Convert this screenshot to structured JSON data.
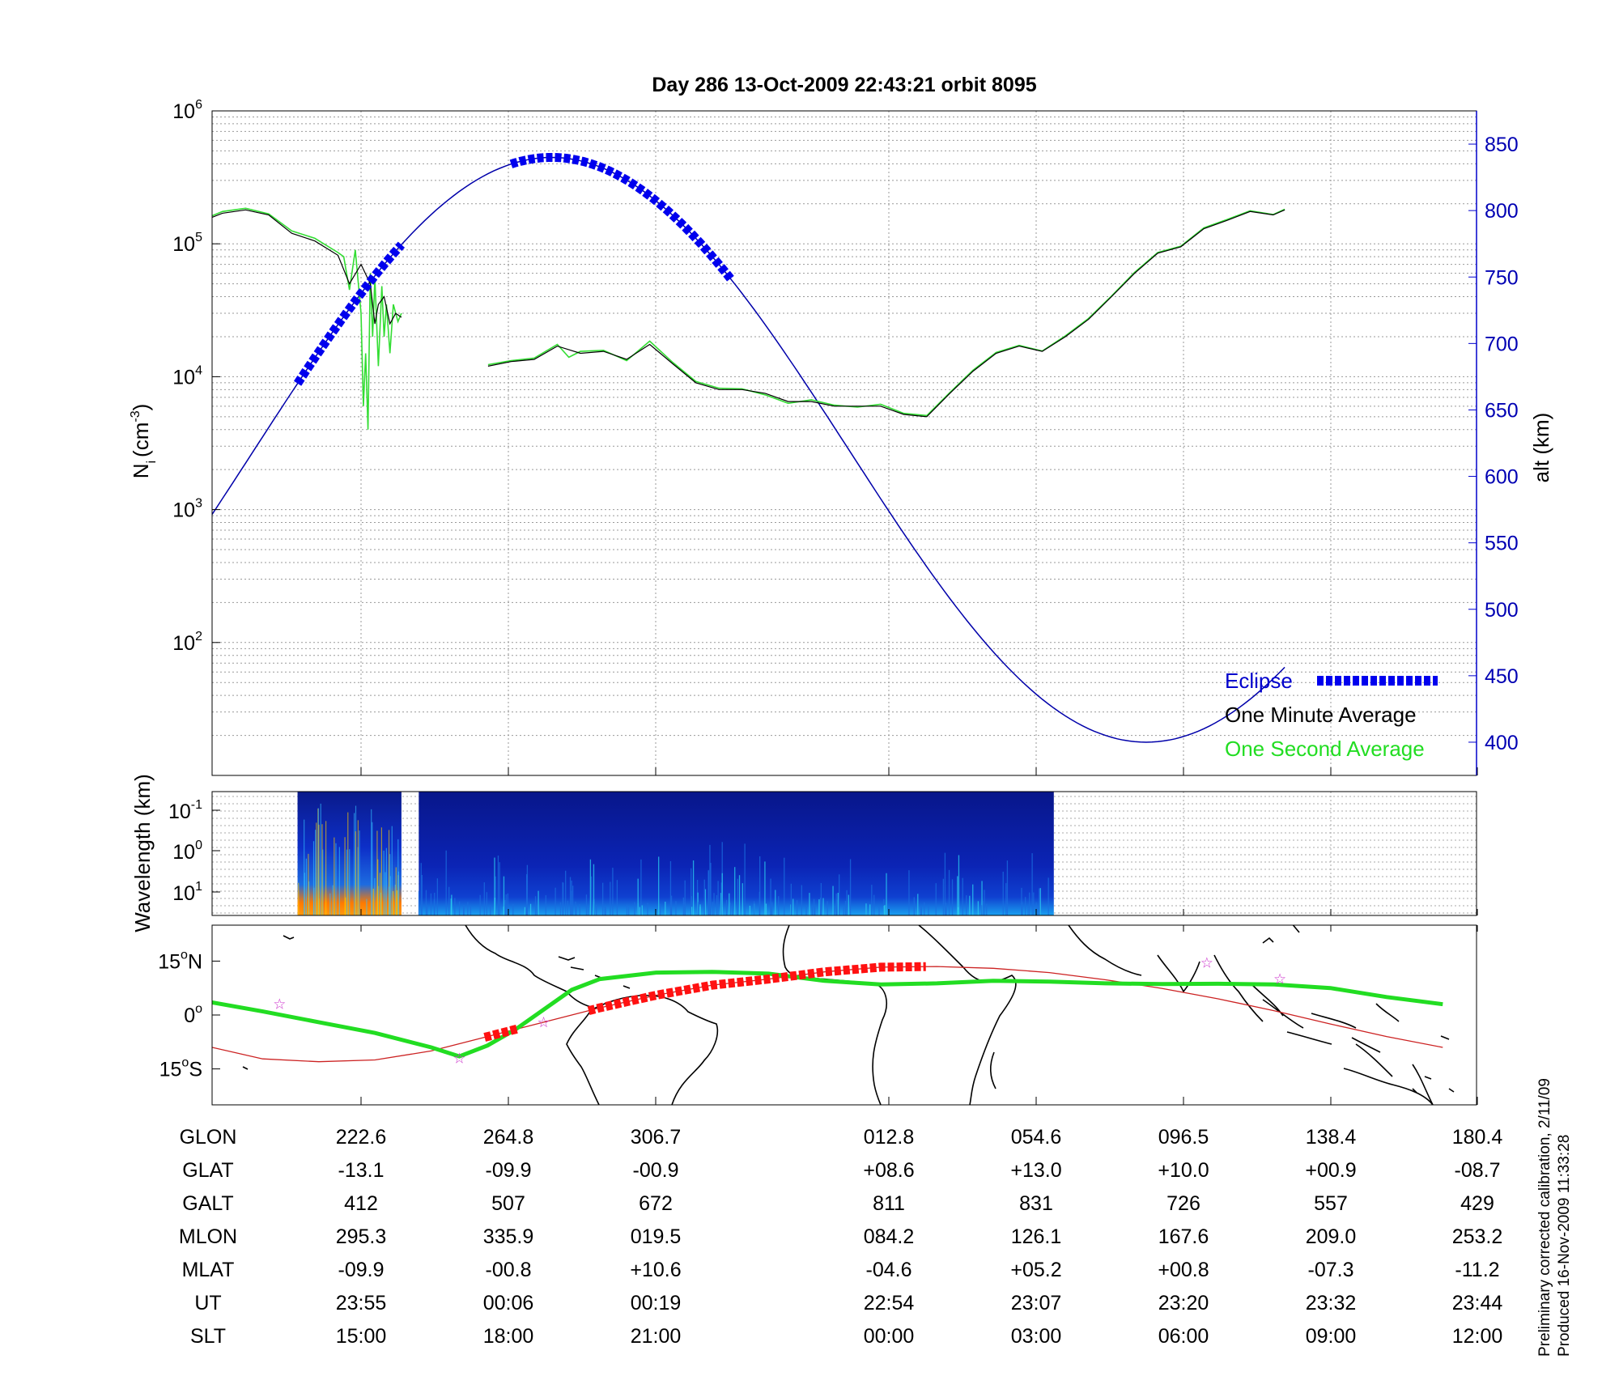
{
  "title": "Day 286  13-Oct-2009 22:43:21   orbit 8095",
  "footer": {
    "line1": "Preliminary corrected calibration, 2/11/09",
    "line2": "Produced 16-Nov-2009 11:33:28"
  },
  "colors": {
    "one_minute": "#000000",
    "one_second": "#33dd33",
    "altitude": "#0000aa",
    "eclipse": "#0000ee",
    "map_track": "#ff1111",
    "dip_equator": "#22dd22",
    "stars": "#cc33cc"
  },
  "chart_data": [
    {
      "type": "line",
      "panel": "density",
      "ylabel_left": "N",
      "ylabel_left_sub": "i",
      "ylabel_left_unit": "(cm",
      "ylabel_left_unit_exp": "-3",
      "ylabel_left_unit_close": ")",
      "ylabel_right": "alt (km)",
      "yscale_left": "log",
      "ylim_left": [
        10,
        1000000
      ],
      "yticks_left": [
        {
          "base": "10",
          "exp": "2",
          "value": 100
        },
        {
          "base": "10",
          "exp": "3",
          "value": 1000
        },
        {
          "base": "10",
          "exp": "4",
          "value": 10000
        },
        {
          "base": "10",
          "exp": "5",
          "value": 100000
        },
        {
          "base": "10",
          "exp": "6",
          "value": 1000000
        }
      ],
      "ylim_right": [
        375,
        875
      ],
      "yticks_right": [
        "400",
        "450",
        "500",
        "550",
        "600",
        "650",
        "700",
        "750",
        "800",
        "850"
      ],
      "grid": true,
      "legend_position": "bottom-right",
      "legend": [
        "Eclipse",
        "One Minute Average",
        "One Second Average"
      ],
      "x_ut_min": [
        -49,
        61
      ],
      "series": [
        {
          "name": "One Minute Average",
          "segments": [
            [
              [
                -49,
                180000
              ],
              [
                -47,
                230000
              ],
              [
                -45,
                310000
              ],
              [
                -43,
                300000
              ],
              [
                -41,
                250000
              ],
              [
                -39,
                170000
              ],
              [
                -37,
                120000
              ],
              [
                -35,
                160000
              ],
              [
                -33,
                195000
              ],
              [
                -31,
                170000
              ],
              [
                -29,
                130000
              ],
              [
                -27,
                100000
              ],
              [
                -25,
                102000
              ],
              [
                -23,
                110000
              ],
              [
                -21,
                120000
              ],
              [
                -19,
                145000
              ],
              [
                -17,
                170000
              ],
              [
                -15,
                180000
              ],
              [
                -13,
                165000
              ],
              [
                -11,
                120000
              ],
              [
                -9,
                105000
              ],
              [
                -7,
                82000
              ],
              [
                -6,
                50000
              ],
              [
                -5,
                70000
              ],
              [
                -4.2,
                50000
              ],
              [
                -3.8,
                25000
              ],
              [
                -3.5,
                35000
              ],
              [
                -3,
                40000
              ],
              [
                -2.5,
                25000
              ],
              [
                -2,
                30000
              ],
              [
                -1.5,
                28000
              ]
            ],
            [
              [
                6,
                12000
              ],
              [
                8,
                13000
              ],
              [
                10,
                13500
              ],
              [
                12,
                17000
              ],
              [
                14,
                15000
              ],
              [
                16,
                15500
              ],
              [
                18,
                13500
              ],
              [
                20,
                17500
              ],
              [
                22,
                12500
              ],
              [
                24,
                9000
              ],
              [
                26,
                8000
              ],
              [
                28,
                8000
              ],
              [
                30,
                7500
              ],
              [
                32,
                6500
              ],
              [
                34,
                6500
              ],
              [
                36,
                6000
              ],
              [
                38,
                6000
              ],
              [
                40,
                6000
              ],
              [
                42,
                5200
              ],
              [
                44,
                5000
              ],
              [
                46,
                7500
              ],
              [
                48,
                11000
              ],
              [
                50,
                15000
              ],
              [
                52,
                17000
              ],
              [
                54,
                15500
              ],
              [
                56,
                20000
              ],
              [
                58,
                27000
              ],
              [
                60,
                40000
              ],
              [
                62,
                60000
              ],
              [
                64,
                85000
              ],
              [
                66,
                95000
              ],
              [
                68,
                130000
              ],
              [
                70,
                150000
              ],
              [
                72,
                175000
              ],
              [
                74,
                165000
              ],
              [
                75,
                180000
              ]
            ]
          ]
        },
        {
          "name": "One Second Average",
          "segments": [
            [
              [
                -49,
                185000
              ],
              [
                -47,
                235000
              ],
              [
                -45,
                315000
              ],
              [
                -43,
                305000
              ],
              [
                -41,
                255000
              ],
              [
                -39,
                175000
              ],
              [
                -37,
                125000
              ],
              [
                -35,
                165000
              ],
              [
                -33,
                200000
              ],
              [
                -31,
                175000
              ],
              [
                -29,
                135000
              ],
              [
                -27,
                102000
              ],
              [
                -25,
                105000
              ],
              [
                -23,
                112000
              ],
              [
                -21,
                123000
              ],
              [
                -19,
                148000
              ],
              [
                -17,
                175000
              ],
              [
                -15,
                185000
              ],
              [
                -13,
                168000
              ],
              [
                -11,
                125000
              ],
              [
                -9,
                110000
              ],
              [
                -7,
                86000
              ],
              [
                -6.5,
                80000
              ],
              [
                -6,
                45000
              ],
              [
                -5.5,
                90000
              ],
              [
                -5,
                30000
              ],
              [
                -4.8,
                6000
              ],
              [
                -4.6,
                15000
              ],
              [
                -4.4,
                4000
              ],
              [
                -4.2,
                60000
              ],
              [
                -4,
                20000
              ],
              [
                -3.8,
                55000
              ],
              [
                -3.5,
                12000
              ],
              [
                -3.2,
                48000
              ],
              [
                -3,
                20000
              ],
              [
                -2.8,
                35000
              ],
              [
                -2.5,
                15000
              ],
              [
                -2.2,
                35000
              ],
              [
                -1.8,
                26000
              ],
              [
                -1.5,
                30000
              ]
            ],
            [
              [
                6,
                12300
              ],
              [
                8,
                13200
              ],
              [
                10,
                13800
              ],
              [
                12,
                17500
              ],
              [
                13,
                14000
              ],
              [
                14,
                15500
              ],
              [
                16,
                15800
              ],
              [
                18,
                13200
              ],
              [
                20,
                18500
              ],
              [
                22,
                12800
              ],
              [
                24,
                9200
              ],
              [
                26,
                8200
              ],
              [
                28,
                8100
              ],
              [
                30,
                7300
              ],
              [
                32,
                6300
              ],
              [
                34,
                6700
              ],
              [
                36,
                6100
              ],
              [
                38,
                5900
              ],
              [
                40,
                6200
              ],
              [
                42,
                5300
              ],
              [
                44,
                5100
              ],
              [
                46,
                7600
              ],
              [
                48,
                11200
              ],
              [
                50,
                15200
              ],
              [
                52,
                17200
              ],
              [
                54,
                15600
              ],
              [
                56,
                20300
              ],
              [
                58,
                27400
              ],
              [
                60,
                40500
              ],
              [
                62,
                61000
              ],
              [
                64,
                86000
              ],
              [
                66,
                96000
              ],
              [
                68,
                132000
              ],
              [
                70,
                152000
              ],
              [
                72,
                177000
              ],
              [
                74,
                166000
              ],
              [
                75,
                182000
              ]
            ]
          ]
        },
        {
          "name": "alt (km)",
          "axis": "right",
          "x_ut_min": [
            -49,
            75
          ],
          "phase_ut_min": -40,
          "mean_alt_km": 620,
          "amplitude_km": 220,
          "period_ut_min": 103
        },
        {
          "name": "Eclipse",
          "axis": "right",
          "intervals_ut_min": [
            [
              -10.5,
              -1.5
            ],
            [
              8,
              27
            ]
          ]
        }
      ]
    },
    {
      "type": "heatmap",
      "panel": "wavelength",
      "ylabel": "Wavelength (km)",
      "yticks": [
        {
          "base": "10",
          "exp": "-1"
        },
        {
          "base": "10",
          "exp": "0"
        },
        {
          "base": "10",
          "exp": "1"
        }
      ],
      "data_blocks_ut_min": [
        [
          -10.5,
          -1.5
        ],
        [
          0,
          55
        ]
      ]
    },
    {
      "type": "map",
      "panel": "ground-track",
      "yticks": [
        {
          "label": "15",
          "deg": "o",
          "hemi": "N"
        },
        {
          "label": "0",
          "deg": "o",
          "hemi": ""
        },
        {
          "label": "15",
          "deg": "o",
          "hemi": "S"
        }
      ],
      "lat_range": [
        -25,
        25
      ],
      "track_lon_lat": [
        [
          -49,
          -9
        ],
        [
          -40,
          -12.2
        ],
        [
          -30,
          -13
        ],
        [
          -20,
          -12.5
        ],
        [
          -10,
          -10
        ],
        [
          0,
          -6
        ],
        [
          10,
          -2
        ],
        [
          20,
          2
        ],
        [
          30,
          5.5
        ],
        [
          40,
          8.3
        ],
        [
          50,
          10
        ],
        [
          60,
          12
        ],
        [
          70,
          13.3
        ],
        [
          80,
          13.5
        ],
        [
          90,
          13
        ],
        [
          100,
          11.8
        ],
        [
          110,
          9.8
        ],
        [
          120,
          7.4
        ],
        [
          130,
          4.5
        ],
        [
          140,
          1.2
        ],
        [
          150,
          -2.5
        ],
        [
          160,
          -6
        ],
        [
          170,
          -9
        ]
      ],
      "dip_equator_lon_lat": [
        [
          -49,
          3.5
        ],
        [
          -40,
          1
        ],
        [
          -30,
          -2
        ],
        [
          -20,
          -5
        ],
        [
          -10,
          -9
        ],
        [
          -5,
          -11.5
        ],
        [
          0,
          -8.5
        ],
        [
          5,
          -4
        ],
        [
          10,
          1.5
        ],
        [
          15,
          7
        ],
        [
          20,
          10
        ],
        [
          30,
          11.8
        ],
        [
          40,
          12
        ],
        [
          50,
          11.5
        ],
        [
          60,
          9.5
        ],
        [
          70,
          8.5
        ],
        [
          80,
          8.8
        ],
        [
          90,
          9.5
        ],
        [
          100,
          9.3
        ],
        [
          110,
          8.8
        ],
        [
          120,
          8.6
        ],
        [
          130,
          8.7
        ],
        [
          140,
          8.5
        ],
        [
          150,
          7.5
        ],
        [
          160,
          5
        ],
        [
          170,
          3
        ]
      ],
      "stars_lon_lat": [
        [
          -37,
          3
        ],
        [
          -5,
          -12
        ],
        [
          10,
          -2
        ],
        [
          128,
          14.5
        ],
        [
          141,
          10
        ]
      ]
    }
  ],
  "table": {
    "row_labels": [
      "GLON",
      "GLAT",
      "GALT",
      "MLON",
      "MLAT",
      "UT",
      "SLT"
    ],
    "columns": [
      [
        "222.6",
        "-13.1",
        "412",
        "295.3",
        "-09.9",
        "23:55",
        "15:00"
      ],
      [
        "264.8",
        "-09.9",
        "507",
        "335.9",
        "-00.8",
        "00:06",
        "18:00"
      ],
      [
        "306.7",
        "-00.9",
        "672",
        "019.5",
        "+10.6",
        "00:19",
        "21:00"
      ],
      [
        "012.8",
        "+08.6",
        "811",
        "084.2",
        "-04.6",
        "22:54",
        "00:00"
      ],
      [
        "054.6",
        "+13.0",
        "831",
        "126.1",
        "+05.2",
        "23:07",
        "03:00"
      ],
      [
        "096.5",
        "+10.0",
        "726",
        "167.6",
        "+00.8",
        "23:20",
        "06:00"
      ],
      [
        "138.4",
        "+00.9",
        "557",
        "209.0",
        "-07.3",
        "23:32",
        "09:00"
      ],
      [
        "180.4",
        "-08.7",
        "429",
        "253.2",
        "-11.2",
        "23:44",
        "12:00"
      ]
    ]
  }
}
